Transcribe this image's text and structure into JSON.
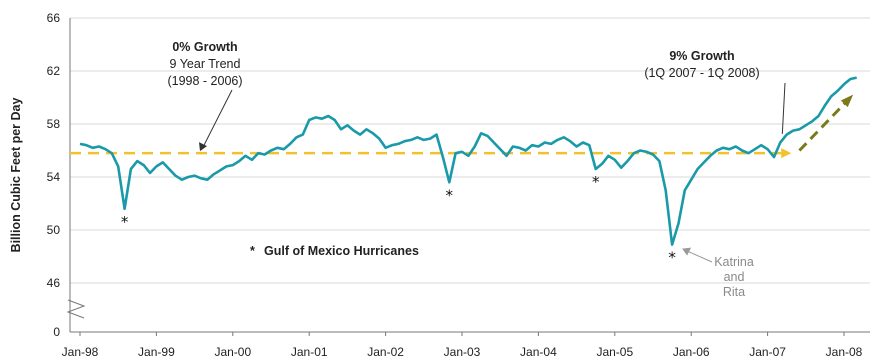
{
  "chart_data": {
    "type": "line",
    "title": "",
    "xlabel": "",
    "ylabel": "Billion Cubic Feet per Day",
    "y_ticks": [
      "0",
      "46",
      "50",
      "54",
      "58",
      "62",
      "66"
    ],
    "y_tick_values": [
      46,
      50,
      54,
      58,
      62,
      66
    ],
    "ylim": [
      46,
      66
    ],
    "axis_break": true,
    "x_ticks": [
      "Jan-98",
      "Jan-99",
      "Jan-00",
      "Jan-01",
      "Jan-02",
      "Jan-03",
      "Jan-04",
      "Jan-05",
      "Jan-06",
      "Jan-07",
      "Jan-08"
    ],
    "grid": "horizontal",
    "colors": {
      "series": "#1a9aa8",
      "trend": "#f2c12e",
      "trend_2007": "#7a7a1a",
      "grid": "#d9d9d9",
      "arrow_gray": "#9a9a9a"
    },
    "series": [
      {
        "x": [
          "1998-01",
          "1998-02",
          "1998-03",
          "1998-04",
          "1998-05",
          "1998-06",
          "1998-07",
          "1998-08",
          "1998-09",
          "1998-10",
          "1998-11",
          "1998-12",
          "1999-01",
          "1999-02",
          "1999-03",
          "1999-04",
          "1999-05",
          "1999-06",
          "1999-07",
          "1999-08",
          "1999-09",
          "1999-10",
          "1999-11",
          "1999-12",
          "2000-01",
          "2000-02",
          "2000-03",
          "2000-04",
          "2000-05",
          "2000-06",
          "2000-07",
          "2000-08",
          "2000-09",
          "2000-10",
          "2000-11",
          "2000-12",
          "2001-01",
          "2001-02",
          "2001-03",
          "2001-04",
          "2001-05",
          "2001-06",
          "2001-07",
          "2001-08",
          "2001-09",
          "2001-10",
          "2001-11",
          "2001-12",
          "2002-01",
          "2002-02",
          "2002-03",
          "2002-04",
          "2002-05",
          "2002-06",
          "2002-07",
          "2002-08",
          "2002-09",
          "2002-10",
          "2002-11",
          "2002-12",
          "2003-01",
          "2003-02",
          "2003-03",
          "2003-04",
          "2003-05",
          "2003-06",
          "2003-07",
          "2003-08",
          "2003-09",
          "2003-10",
          "2003-11",
          "2003-12",
          "2004-01",
          "2004-02",
          "2004-03",
          "2004-04",
          "2004-05",
          "2004-06",
          "2004-07",
          "2004-08",
          "2004-09",
          "2004-10",
          "2004-11",
          "2004-12",
          "2005-01",
          "2005-02",
          "2005-03",
          "2005-04",
          "2005-05",
          "2005-06",
          "2005-07",
          "2005-08",
          "2005-09",
          "2005-10",
          "2005-11",
          "2005-12",
          "2006-01",
          "2006-02",
          "2006-03",
          "2006-04",
          "2006-05",
          "2006-06",
          "2006-07",
          "2006-08",
          "2006-09",
          "2006-10",
          "2006-11",
          "2006-12",
          "2007-01",
          "2007-02",
          "2007-03",
          "2007-04",
          "2007-05",
          "2007-06",
          "2007-07",
          "2007-08",
          "2007-09",
          "2007-10",
          "2007-11",
          "2007-12",
          "2008-01",
          "2008-02",
          "2008-03"
        ],
        "values": [
          56.5,
          56.4,
          56.2,
          56.3,
          56.1,
          55.8,
          54.8,
          51.6,
          54.6,
          55.2,
          54.9,
          54.3,
          54.8,
          55.1,
          54.6,
          54.1,
          53.8,
          54.0,
          54.1,
          53.9,
          53.8,
          54.2,
          54.5,
          54.8,
          54.9,
          55.2,
          55.6,
          55.3,
          55.8,
          55.7,
          56.0,
          56.2,
          56.1,
          56.5,
          57.0,
          57.2,
          58.3,
          58.5,
          58.4,
          58.6,
          58.3,
          57.6,
          57.9,
          57.5,
          57.2,
          57.6,
          57.3,
          56.9,
          56.2,
          56.4,
          56.5,
          56.7,
          56.8,
          57.0,
          56.8,
          56.9,
          57.2,
          55.5,
          53.6,
          55.8,
          55.9,
          55.6,
          56.3,
          57.3,
          57.1,
          56.6,
          56.1,
          55.6,
          56.3,
          56.2,
          56.0,
          56.4,
          56.3,
          56.6,
          56.5,
          56.8,
          57.0,
          56.7,
          56.3,
          56.6,
          56.4,
          54.6,
          55.0,
          55.6,
          55.3,
          54.7,
          55.2,
          55.8,
          56.0,
          55.9,
          55.7,
          55.2,
          53.0,
          48.9,
          50.5,
          53.0,
          53.8,
          54.6,
          55.1,
          55.6,
          56.0,
          56.2,
          56.1,
          56.3,
          56.0,
          55.8,
          56.1,
          56.4,
          56.1,
          55.5,
          56.6,
          57.2,
          57.5,
          57.6,
          57.9,
          58.2,
          58.6,
          59.4,
          60.1,
          60.5,
          61.0,
          61.4,
          61.5
        ]
      }
    ],
    "trends": [
      {
        "label": "0% Growth",
        "level": 55.8,
        "from": "1998-01",
        "to": "2006-12"
      },
      {
        "label": "9% Growth",
        "from_value": 56.0,
        "to_value": 60.0,
        "from": "2007-06",
        "to": "2008-02"
      }
    ],
    "hurricane_markers": [
      {
        "x": "1998-08",
        "value": 51.6
      },
      {
        "x": "2002-11",
        "value": 53.6
      },
      {
        "x": "2004-10",
        "value": 54.6
      },
      {
        "x": "2005-10",
        "value": 48.9
      }
    ],
    "annotations": {
      "zero_growth_title": "0% Growth",
      "zero_growth_line2": "9 Year Trend",
      "zero_growth_line3": "(1998 - 2006)",
      "nine_growth_title": "9% Growth",
      "nine_growth_line2": "(1Q 2007 - 1Q 2008)",
      "hurricanes_star": "*",
      "hurricanes_text": "Gulf of Mexico Hurricanes",
      "katrina_line1": "Katrina",
      "katrina_line2": "and",
      "katrina_line3": "Rita"
    }
  }
}
